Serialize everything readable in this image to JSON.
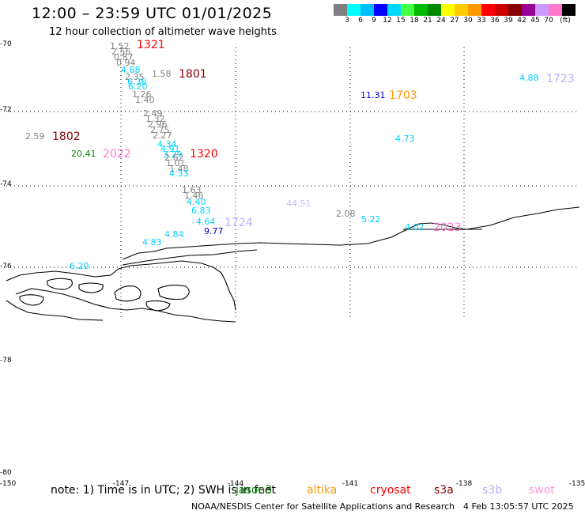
{
  "header": {
    "title": "12:00 – 23:59 UTC 01/01/2025",
    "subtitle": "12 hour collection of altimeter wave heights"
  },
  "legend": {
    "colors": [
      "#808080",
      "#00ffff",
      "#00bfff",
      "#0000ff",
      "#00d8ff",
      "#44ff44",
      "#00bb00",
      "#008800",
      "#ffff00",
      "#ffcc00",
      "#ff9900",
      "#ff0000",
      "#cc0000",
      "#880000",
      "#990099",
      "#cc99ff",
      "#ff77cc",
      "#000000"
    ],
    "labels": [
      "3",
      "6",
      "9",
      "12",
      "15",
      "18",
      "21",
      "24",
      "27",
      "30",
      "33",
      "36",
      "39",
      "42",
      "45",
      "70",
      "(ft)"
    ]
  },
  "axes": {
    "lat_labels": [
      "-70",
      "-72",
      "-74",
      "-76",
      "-78",
      "-80"
    ],
    "lon_labels": [
      "-150",
      "-147",
      "-144",
      "-141",
      "-138",
      "-135"
    ]
  },
  "observations": [
    {
      "text": "1.52",
      "color": "#808080"
    },
    {
      "text": "2.56",
      "color": "#808080"
    },
    {
      "text": "0.87",
      "color": "#808080"
    },
    {
      "text": "0.94",
      "color": "#808080"
    },
    {
      "text": "4.68",
      "color": "#00d0ff"
    },
    {
      "text": "2.35",
      "color": "#808080"
    },
    {
      "text": "6.36",
      "color": "#00d0ff"
    },
    {
      "text": "6.20",
      "color": "#00d0ff"
    },
    {
      "text": "1.26",
      "color": "#808080"
    },
    {
      "text": "1.40",
      "color": "#808080"
    },
    {
      "text": "1.58",
      "color": "#808080"
    },
    {
      "text": "2.49",
      "color": "#808080"
    },
    {
      "text": "1.32",
      "color": "#808080"
    },
    {
      "text": "2.96",
      "color": "#808080"
    },
    {
      "text": "2.75",
      "color": "#808080"
    },
    {
      "text": "2.27",
      "color": "#808080"
    },
    {
      "text": "4.34",
      "color": "#00d0ff"
    },
    {
      "text": "4.91",
      "color": "#00d0ff"
    },
    {
      "text": "3.29",
      "color": "#00d0ff"
    },
    {
      "text": "2.62",
      "color": "#808080"
    },
    {
      "text": "1.01",
      "color": "#808080"
    },
    {
      "text": "1.48",
      "color": "#808080"
    },
    {
      "text": "4.33",
      "color": "#00d0ff"
    },
    {
      "text": "2.59",
      "color": "#808080"
    },
    {
      "text": "20.41",
      "color": "#008800"
    },
    {
      "text": "1.63",
      "color": "#808080"
    },
    {
      "text": "1.46",
      "color": "#808080"
    },
    {
      "text": "4.40",
      "color": "#00d0ff"
    },
    {
      "text": "6.83",
      "color": "#00d0ff"
    },
    {
      "text": "4.64",
      "color": "#00d0ff"
    },
    {
      "text": "4.84",
      "color": "#00d0ff"
    },
    {
      "text": "9.77",
      "color": "#0000cc"
    },
    {
      "text": "4.83",
      "color": "#00d0ff"
    },
    {
      "text": "6.20",
      "color": "#00d0ff"
    },
    {
      "text": "44.51",
      "color": "#ccbbff"
    },
    {
      "text": "2.08",
      "color": "#808080"
    },
    {
      "text": "5.22",
      "color": "#00d0ff"
    },
    {
      "text": "11.31",
      "color": "#0000cc"
    },
    {
      "text": "4.73",
      "color": "#00d0ff"
    },
    {
      "text": "4.02",
      "color": "#00d0ff"
    },
    {
      "text": "4.88",
      "color": "#00d0ff"
    },
    {
      "text": "1.00",
      "color": "#808080"
    }
  ],
  "pass_labels": [
    {
      "text": "1321",
      "color": "#ff0000"
    },
    {
      "text": "1801",
      "color": "#880000"
    },
    {
      "text": "1802",
      "color": "#880000"
    },
    {
      "text": "2022",
      "color": "#ff77cc"
    },
    {
      "text": "1320",
      "color": "#ff0000"
    },
    {
      "text": "1724",
      "color": "#bbaaff"
    },
    {
      "text": "1703",
      "color": "#ff9900"
    },
    {
      "text": "1723",
      "color": "#bbaaff"
    },
    {
      "text": "2023",
      "color": "#ff77cc"
    }
  ],
  "footer": {
    "note": "note: 1) Time is in UTC; 2) SWH is in feet",
    "satellites": [
      {
        "name": "jason3",
        "color": "#008800"
      },
      {
        "name": "altika",
        "color": "#ff9900"
      },
      {
        "name": "cryosat",
        "color": "#ff0000"
      },
      {
        "name": "s3a",
        "color": "#880000"
      },
      {
        "name": "s3b",
        "color": "#bbaaff"
      },
      {
        "name": "swot",
        "color": "#ff99dd"
      }
    ],
    "credit": "NOAA/NESDIS Center for Satellite Applications and Research",
    "timestamp": "4 Feb 13:05:57 UTC 2025"
  }
}
